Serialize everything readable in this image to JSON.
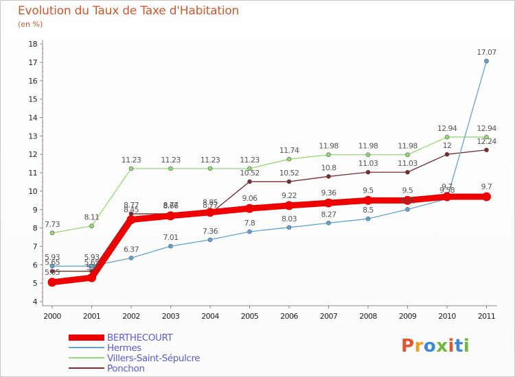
{
  "header": {
    "title": "Evolution du Taux de Taxe d'Habitation",
    "unit": "(en %)"
  },
  "logo": {
    "text": "Proxiti",
    "colors": [
      "#e8542a",
      "#f0a020",
      "#3a88d8",
      "#6cb83a",
      "#e8542a",
      "#3a88d8",
      "#6cb83a"
    ]
  },
  "chart_data": {
    "type": "line",
    "title": "Evolution du Taux de Taxe d'Habitation",
    "ylabel": "(en %)",
    "xlabel": "",
    "x": [
      "2000",
      "2001",
      "2002",
      "2003",
      "2004",
      "2005",
      "2006",
      "2007",
      "2008",
      "2009",
      "2010",
      "2011"
    ],
    "yticks": [
      4,
      5,
      6,
      7,
      8,
      9,
      10,
      11,
      12,
      13,
      14,
      15,
      16,
      17,
      18
    ],
    "ylim": [
      4,
      18
    ],
    "grid": false,
    "legend_position": "bottom-left",
    "series": [
      {
        "name": "BERTHECOURT",
        "color": "#ee0000",
        "width": 9,
        "values": [
          5.05,
          5.3,
          8.45,
          8.66,
          8.85,
          9.06,
          9.22,
          9.36,
          9.5,
          9.5,
          9.7,
          9.7
        ],
        "labels": [
          "5.05",
          "5.3",
          "8.45",
          "8.66",
          "8.85",
          "9.06",
          "9.22",
          "9.36",
          "9.5",
          "9.5",
          "9.7",
          "9.7"
        ]
      },
      {
        "name": "Hermes",
        "color": "#5fa3d6",
        "width": 1.3,
        "values": [
          5.93,
          5.93,
          6.37,
          7.01,
          7.36,
          7.8,
          8.03,
          8.27,
          8.5,
          9.01,
          9.58,
          17.07
        ],
        "labels": [
          "5.93",
          "5.93",
          "6.37",
          "7.01",
          "7.36",
          "7.8",
          "8.03",
          "8.27",
          "8.5",
          "9.01",
          "9.58",
          "17.07"
        ]
      },
      {
        "name": "Villers-Saint-Sépulcre",
        "color": "#90dc70",
        "width": 1.3,
        "values": [
          7.73,
          8.11,
          11.23,
          11.23,
          11.23,
          11.23,
          11.74,
          11.98,
          11.98,
          11.98,
          12.94,
          12.94
        ],
        "labels": [
          "7.73",
          "8.11",
          "11.23",
          "11.23",
          "11.23",
          "11.23",
          "11.74",
          "11.98",
          "11.98",
          "11.98",
          "12.94",
          "12.94"
        ]
      },
      {
        "name": "Ponchon",
        "color": "#7a2a2a",
        "width": 1.3,
        "values": [
          5.65,
          5.65,
          8.77,
          8.77,
          8.77,
          10.52,
          10.52,
          10.8,
          11.03,
          11.03,
          12,
          12.24
        ],
        "labels": [
          "5.65",
          "5.65",
          "8.77",
          "8.77",
          "8.77",
          "10.52",
          "10.52",
          "10.8",
          "11.03",
          "11.03",
          "12",
          "12.24"
        ]
      }
    ]
  }
}
